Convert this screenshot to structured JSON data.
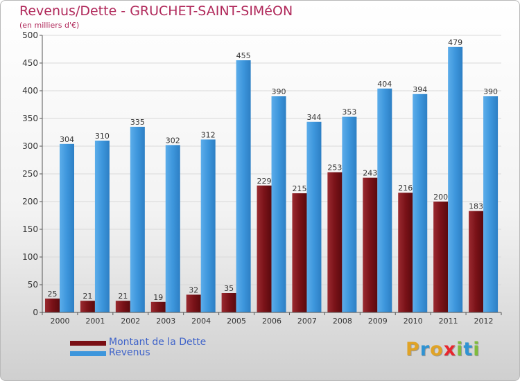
{
  "header": {
    "title": "Revenus/Dette - GRUCHET-SAINT-SIMéON",
    "subtitle": "(en milliers d'€)"
  },
  "legend": [
    {
      "label": "Montant de la Dette",
      "color": "#7a0f14"
    },
    {
      "label": "Revenus",
      "color": "#3d96dc"
    }
  ],
  "brand": {
    "text": "Proxiti",
    "letters": [
      {
        "ch": "P",
        "color": "#e0a326"
      },
      {
        "ch": "r",
        "color": "#2f93d3"
      },
      {
        "ch": "o",
        "color": "#e0a326"
      },
      {
        "ch": "x",
        "color": "#e8262e"
      },
      {
        "ch": "i",
        "color": "#7fbc3c"
      },
      {
        "ch": "t",
        "color": "#2f93d3"
      },
      {
        "ch": "i",
        "color": "#7fbc3c"
      }
    ]
  },
  "chart_data": {
    "type": "bar",
    "title": "Revenus/Dette - GRUCHET-SAINT-SIMéON",
    "subtitle": "(en milliers d'€)",
    "categories": [
      "2000",
      "2001",
      "2002",
      "2003",
      "2004",
      "2005",
      "2006",
      "2007",
      "2008",
      "2009",
      "2010",
      "2011",
      "2012"
    ],
    "series": [
      {
        "name": "Montant de la Dette",
        "color": "#7a0f14",
        "values": [
          25,
          21,
          21,
          19,
          32,
          35,
          229,
          215,
          253,
          243,
          216,
          200,
          183
        ]
      },
      {
        "name": "Revenus",
        "color": "#3d96dc",
        "values": [
          304,
          310,
          335,
          302,
          312,
          455,
          390,
          344,
          353,
          404,
          394,
          479,
          390
        ]
      }
    ],
    "ylim": [
      0,
      500
    ],
    "yticks": [
      0,
      50,
      100,
      150,
      200,
      250,
      300,
      350,
      400,
      450,
      500
    ],
    "grid": true,
    "legend_position": "bottom-left"
  }
}
